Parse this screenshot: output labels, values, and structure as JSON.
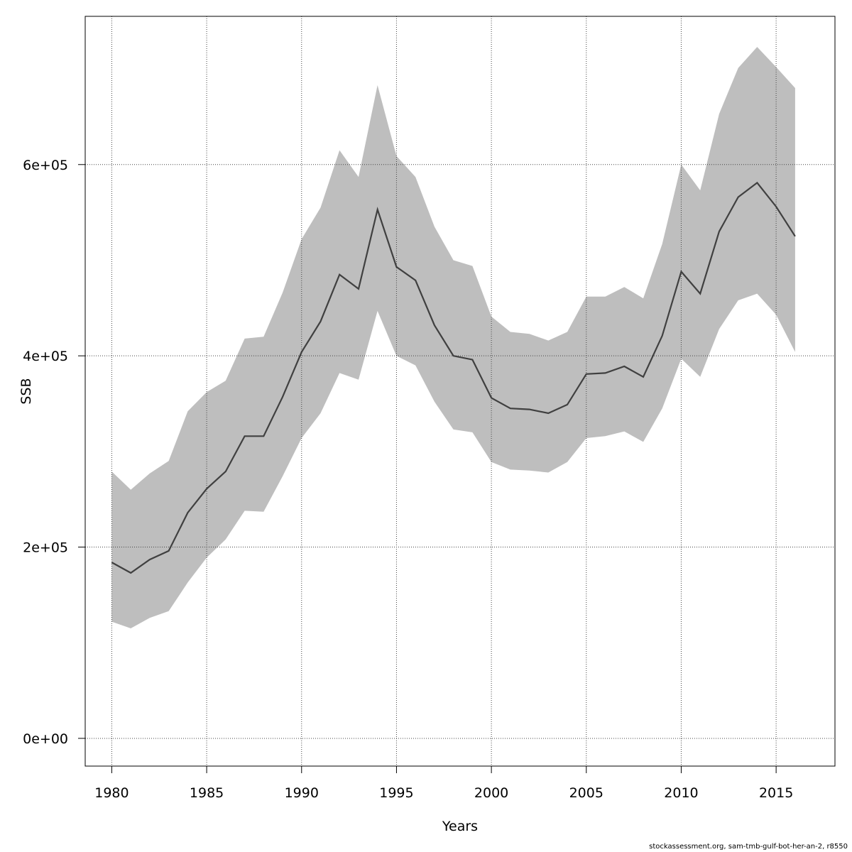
{
  "chart_data": {
    "type": "line",
    "title": "",
    "xlabel": "Years",
    "ylabel": "SSB",
    "xlim": [
      1978.6,
      2018.1
    ],
    "ylim": [
      -29000,
      755000
    ],
    "x_ticks": [
      1980,
      1985,
      1990,
      1995,
      2000,
      2005,
      2010,
      2015
    ],
    "x_tick_labels": [
      "1980",
      "1985",
      "1990",
      "1995",
      "2000",
      "2005",
      "2010",
      "2015"
    ],
    "y_ticks": [
      0,
      200000,
      400000,
      600000
    ],
    "y_tick_labels": [
      "0e+00",
      "2e+05",
      "4e+05",
      "6e+05"
    ],
    "grid": true,
    "colors": {
      "line": "#404040",
      "band": "#bebebe",
      "grid": "#444444",
      "frame": "#000000"
    },
    "x": [
      1980,
      1981,
      1982,
      1983,
      1984,
      1985,
      1986,
      1987,
      1988,
      1989,
      1990,
      1991,
      1992,
      1993,
      1994,
      1995,
      1996,
      1997,
      1998,
      1999,
      2000,
      2001,
      2002,
      2003,
      2004,
      2005,
      2006,
      2007,
      2008,
      2009,
      2010,
      2011,
      2012,
      2013,
      2014,
      2015,
      2016
    ],
    "series": [
      {
        "values": [
          184000,
          173000,
          187000,
          196000,
          236000,
          261000,
          279000,
          316000,
          316000,
          357000,
          404000,
          436000,
          485000,
          470000,
          553000,
          493000,
          479000,
          432000,
          400000,
          396000,
          356000,
          345000,
          344000,
          340000,
          349000,
          381000,
          382000,
          389000,
          378000,
          421000,
          488000,
          465000,
          530000,
          566000,
          581000,
          556000,
          525000
        ]
      }
    ],
    "band": {
      "lower": [
        122000,
        115000,
        126000,
        133000,
        163000,
        189000,
        208000,
        238000,
        237000,
        274000,
        314000,
        340000,
        382000,
        375000,
        447000,
        400000,
        390000,
        352000,
        323000,
        320000,
        289000,
        281000,
        280000,
        278000,
        289000,
        314000,
        316000,
        321000,
        310000,
        345000,
        397000,
        378000,
        428000,
        458000,
        465000,
        443000,
        404000
      ],
      "upper": [
        279000,
        260000,
        277000,
        290000,
        342000,
        362000,
        374000,
        418000,
        420000,
        466000,
        522000,
        555000,
        615000,
        587000,
        683000,
        609000,
        587000,
        535000,
        500000,
        494000,
        441000,
        425000,
        423000,
        416000,
        425000,
        462000,
        462000,
        472000,
        460000,
        517000,
        600000,
        573000,
        653000,
        701000,
        723000,
        702000,
        680000
      ]
    },
    "footer": "stockassessment.org, sam-tmb-gulf-bot-her-an-2, r8550"
  }
}
